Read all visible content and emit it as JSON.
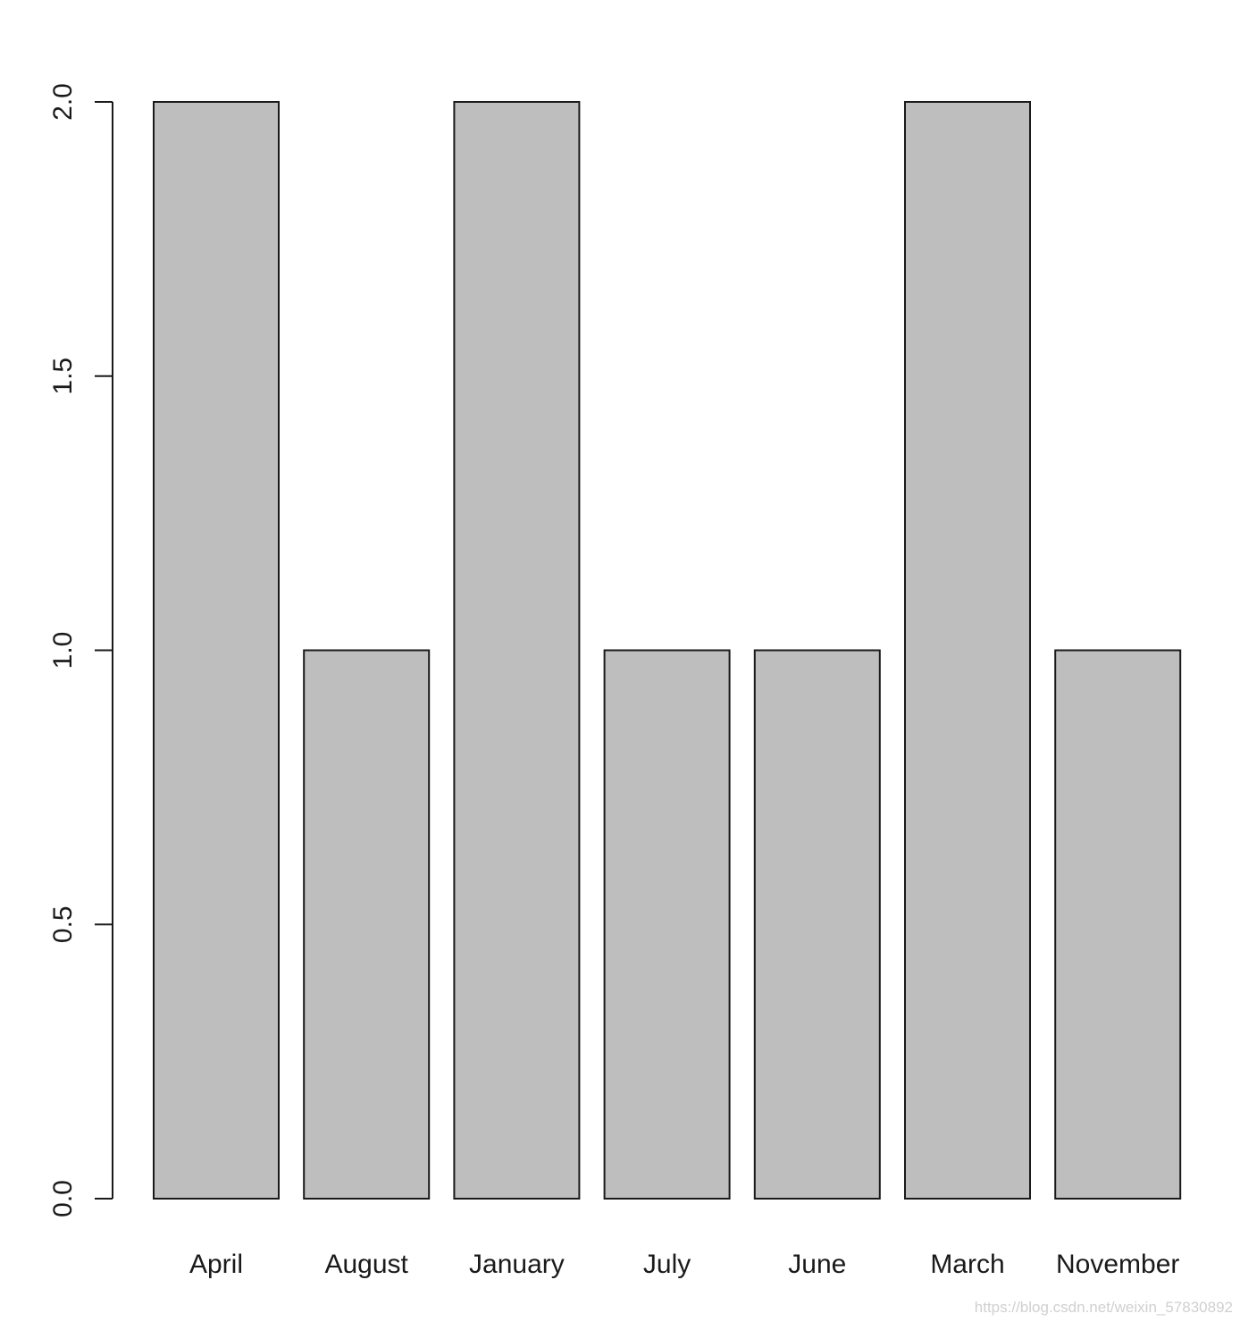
{
  "chart_data": {
    "type": "bar",
    "categories": [
      "April",
      "August",
      "January",
      "July",
      "June",
      "March",
      "November"
    ],
    "values": [
      2,
      1,
      2,
      1,
      1,
      2,
      1
    ],
    "title": "",
    "xlabel": "",
    "ylabel": "",
    "ylim": [
      0,
      2
    ],
    "yticks": [
      "0.0",
      "0.5",
      "1.0",
      "1.5",
      "2.0"
    ],
    "bar_color": "#bebebe",
    "border_color": "#1a1a1a",
    "grid": false,
    "legend": "none"
  },
  "watermark": "https://blog.csdn.net/weixin_57830892"
}
